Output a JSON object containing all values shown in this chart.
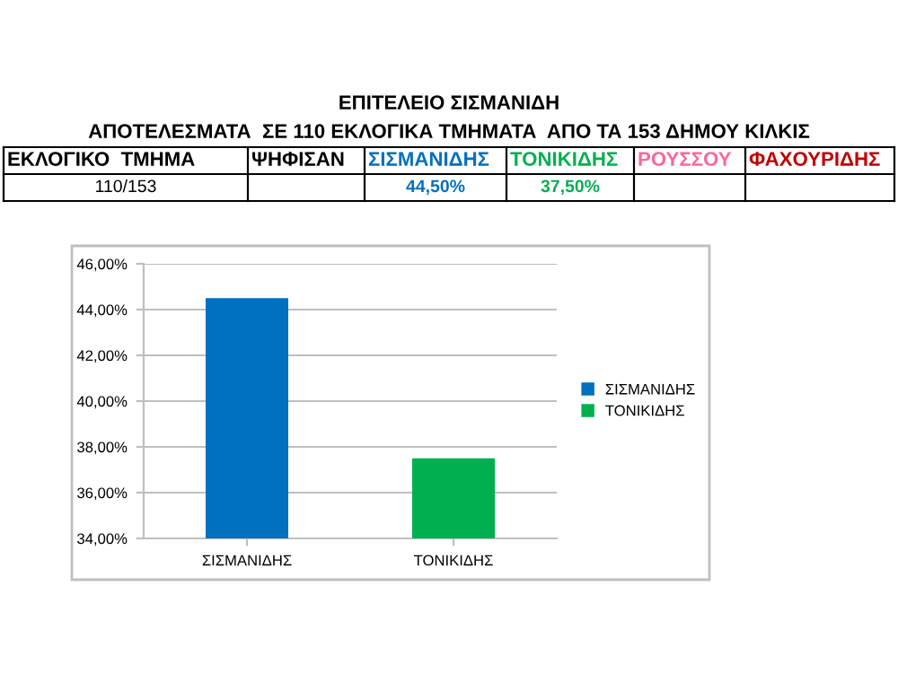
{
  "chart_data": {
    "type": "bar",
    "title": "ΕΠΙΤΕΛΕΙΟ ΣΙΣΜΑΝΙΔΗ",
    "subtitle": "ΑΠΟΤΕΛΕΣΜΑΤΑ  ΣΕ 110 ΕΚΛΟΓΙΚΑ ΤΜΗΜΑΤΑ  ΑΠΟ ΤΑ 153 ΔΗΜΟΥ ΚΙΛΚΙΣ",
    "annotations": [
      "ΕΚΛΟΓΙΚΟ  ΤΜΗΜΑ",
      "ΨΗΦΙΣΑΝ",
      "ΡΟΥΣΣΟΥ",
      "ΦΑΧΟΥΡΙΔΗΣ",
      "110/153",
      "44,50%",
      "37,50%"
    ],
    "categories": [
      "ΣΙΣΜΑΝΙΔΗΣ",
      "ΤΟΝΙΚΙΔΗΣ"
    ],
    "series": [
      {
        "name": "ΣΙΣΜΑΝΙΔΗΣ",
        "color": "#0070c0",
        "values": [
          44.5,
          null
        ]
      },
      {
        "name": "ΤΟΝΙΚΙΔΗΣ",
        "color": "#00b050",
        "values": [
          null,
          37.5
        ]
      }
    ],
    "ylim": [
      34,
      46
    ],
    "yticks": [
      {
        "value": 34,
        "label": "34,00%"
      },
      {
        "value": 36,
        "label": "36,00%"
      },
      {
        "value": 38,
        "label": "38,00%"
      },
      {
        "value": 40,
        "label": "40,00%"
      },
      {
        "value": 42,
        "label": "42,00%"
      },
      {
        "value": 44,
        "label": "44,00%"
      },
      {
        "value": 46,
        "label": "46,00%"
      }
    ],
    "grid": "y",
    "legend": "right"
  }
}
